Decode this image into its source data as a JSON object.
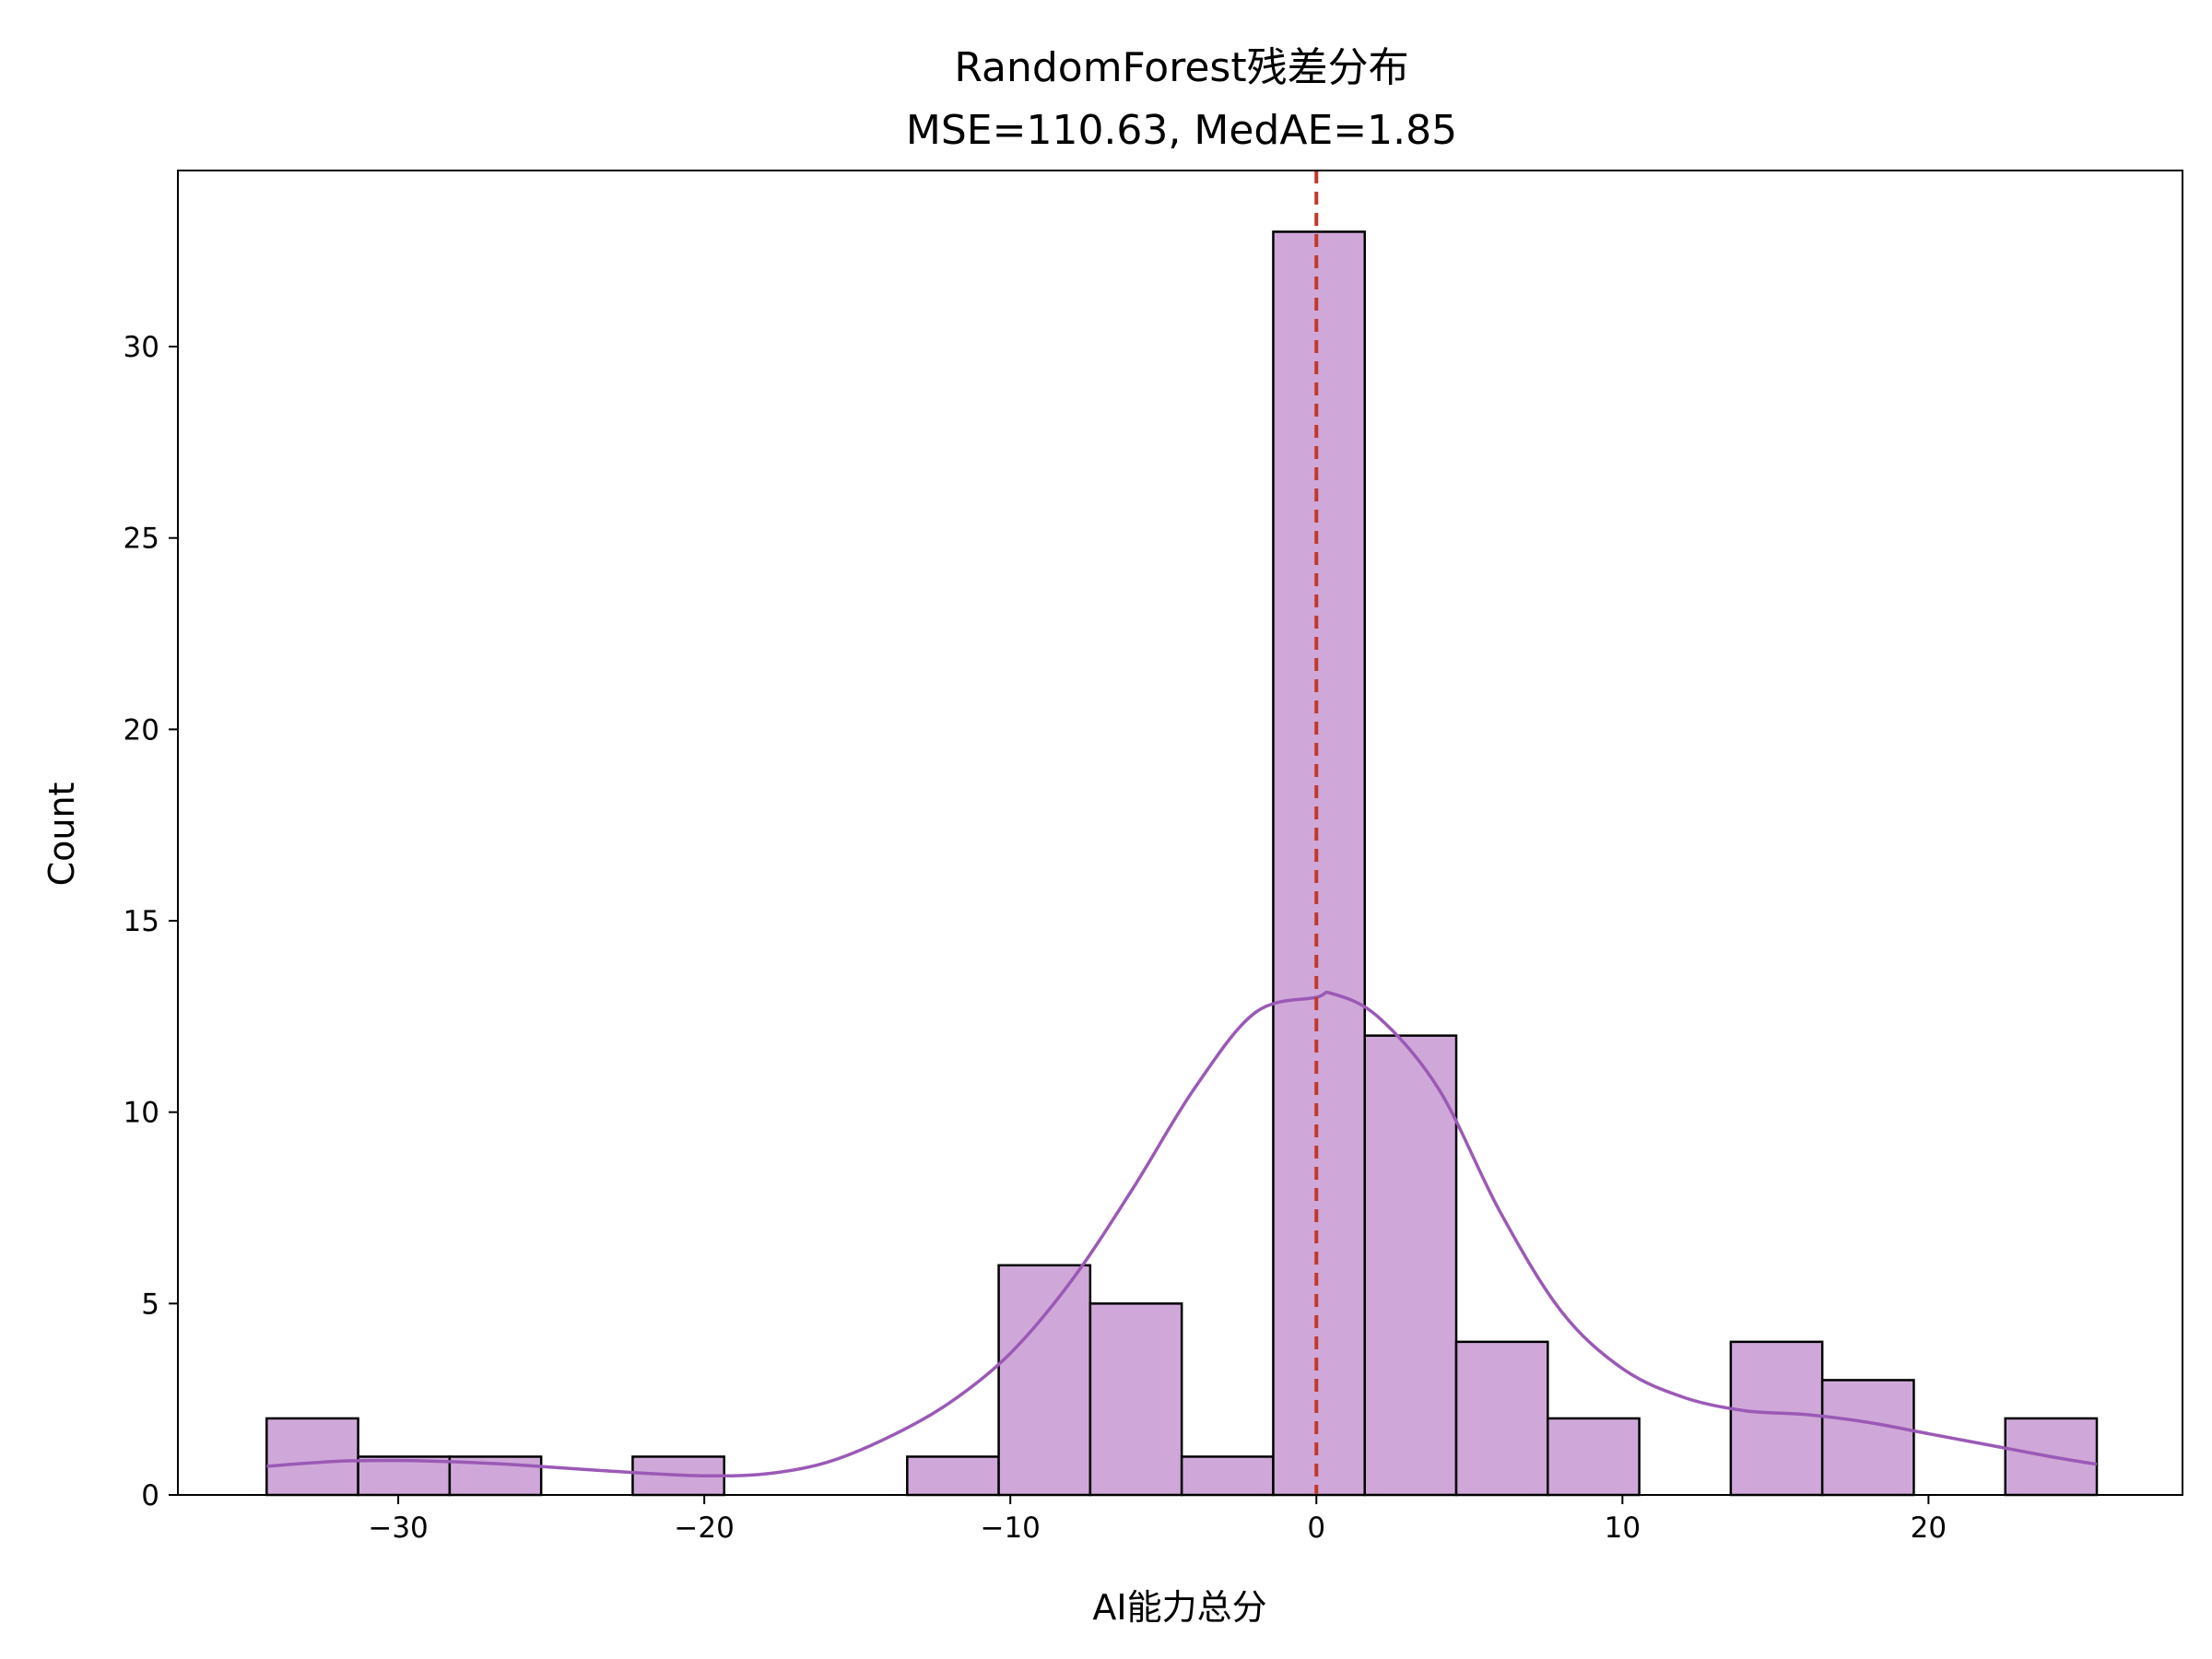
{
  "chart_data": {
    "type": "bar",
    "title_line1": "RandomForest残差分布",
    "title_line2": "MSE=110.63, MedAE=1.85",
    "xlabel": "AI能力总分",
    "ylabel": "Count",
    "xlim": [
      -37.2,
      28.3
    ],
    "ylim": [
      0,
      34.6
    ],
    "xticks": [
      -30,
      -20,
      -10,
      0,
      10,
      20
    ],
    "xtick_labels": [
      "−30",
      "−20",
      "−10",
      "0",
      "10",
      "20"
    ],
    "yticks": [
      0,
      5,
      10,
      15,
      20,
      25,
      30
    ],
    "ytick_labels": [
      "0",
      "5",
      "10",
      "15",
      "20",
      "25",
      "30"
    ],
    "bin_start": -34.3,
    "bin_width": 2.99,
    "values": [
      2,
      1,
      1,
      0,
      1,
      0,
      0,
      1,
      6,
      5,
      1,
      33,
      12,
      4,
      2,
      0,
      4,
      3,
      0,
      2
    ],
    "kde": {
      "x": [
        -34.3,
        -32,
        -30,
        -28,
        -26,
        -24,
        -22,
        -20,
        -18,
        -16,
        -14,
        -12,
        -10,
        -8,
        -6,
        -4,
        -2,
        0,
        0.5,
        2,
        4,
        6,
        8,
        10,
        12,
        14,
        16,
        18,
        20,
        22,
        24,
        25.5
      ],
      "y": [
        0.75,
        0.88,
        0.9,
        0.86,
        0.78,
        0.67,
        0.57,
        0.5,
        0.55,
        0.85,
        1.5,
        2.4,
        3.7,
        5.6,
        8.0,
        10.6,
        12.6,
        13.0,
        13.1,
        12.5,
        10.6,
        7.4,
        4.8,
        3.3,
        2.55,
        2.2,
        2.1,
        1.9,
        1.6,
        1.3,
        1.0,
        0.8
      ]
    },
    "ref_line_x": 0,
    "bar_color": "#cfa8d9",
    "bar_edge_color": "#000000",
    "kde_color": "#9b59b6",
    "ref_line_color": "#c0392b",
    "grid": false,
    "legend": "none"
  }
}
